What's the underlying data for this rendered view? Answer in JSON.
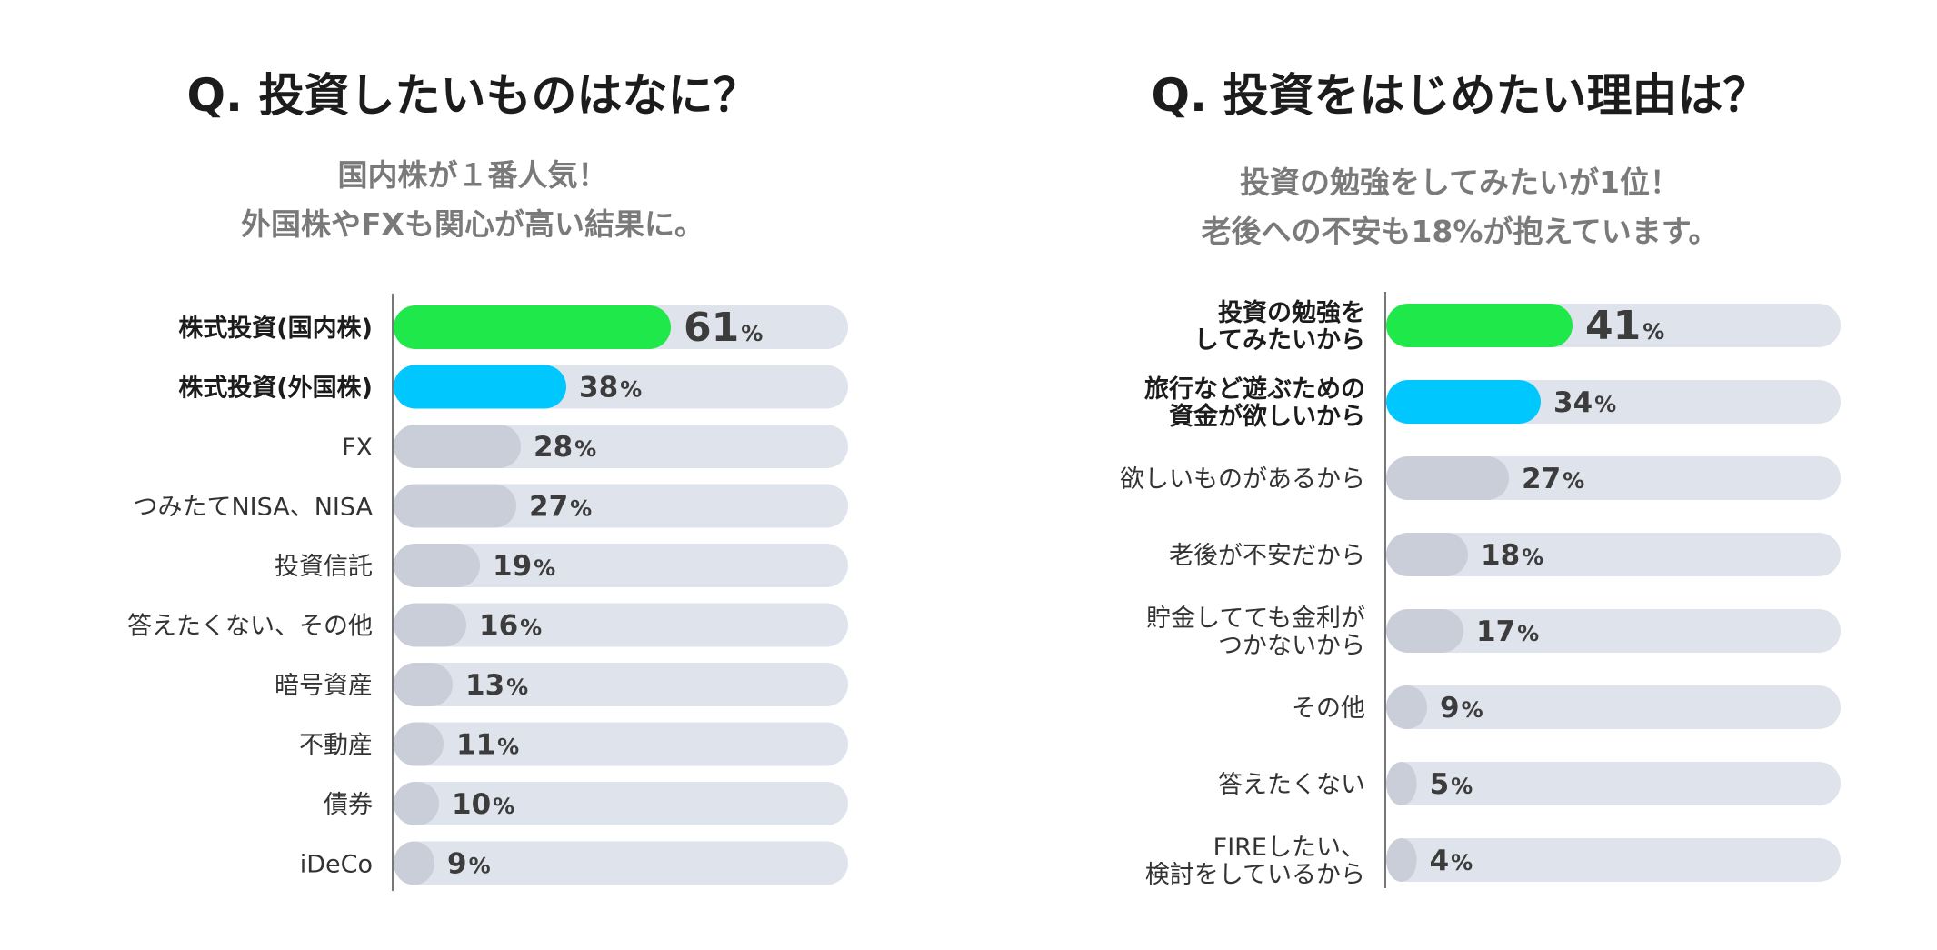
{
  "chart_data": [
    {
      "type": "bar",
      "orientation": "horizontal",
      "title": "Q. 投資したいものはなに？",
      "subtitle": [
        "国内株が１番人気！",
        "外国株やFXも関心が高い結果に。"
      ],
      "unit": "%",
      "xlim": [
        0,
        100
      ],
      "categories": [
        "株式投資(国内株)",
        "株式投資(外国株)",
        "FX",
        "つみたてNISA、NISA",
        "投資信託",
        "答えたくない、その他",
        "暗号資産",
        "不動産",
        "債券",
        "iDeCo"
      ],
      "values": [
        61,
        38,
        28,
        27,
        19,
        16,
        13,
        11,
        10,
        9
      ],
      "highlight_colors": [
        "#1fe84a",
        "#00c8ff"
      ],
      "default_color": "#c9ced9",
      "track_color": "#dfe3ec"
    },
    {
      "type": "bar",
      "orientation": "horizontal",
      "title": "Q. 投資をはじめたい理由は？",
      "subtitle": [
        "投資の勉強をしてみたいが1位！",
        "老後への不安も18%が抱えています。"
      ],
      "unit": "%",
      "xlim": [
        0,
        100
      ],
      "categories": [
        [
          "投資の勉強を",
          "してみたいから"
        ],
        [
          "旅行など遊ぶための",
          "資金が欲しいから"
        ],
        [
          "欲しいものがあるから"
        ],
        [
          "老後が不安だから"
        ],
        [
          "貯金してても金利が",
          "つかないから"
        ],
        [
          "その他"
        ],
        [
          "答えたくない"
        ],
        [
          "FIREしたい、",
          "検討をしているから"
        ]
      ],
      "values": [
        41,
        34,
        27,
        18,
        17,
        9,
        5,
        4
      ],
      "highlight_colors": [
        "#1fe84a",
        "#00c8ff"
      ],
      "default_color": "#c9ced9",
      "track_color": "#dfe3ec"
    }
  ]
}
